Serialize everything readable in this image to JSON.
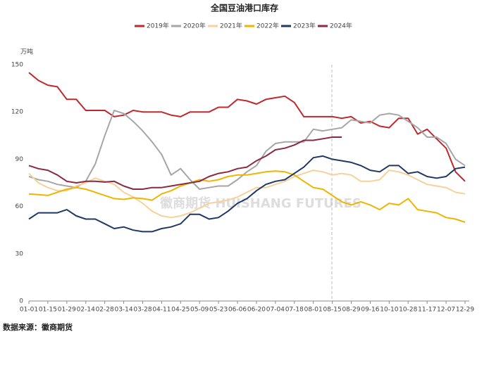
{
  "chart_data": {
    "type": "line",
    "title": "全国豆油港口库存",
    "y_unit": "万吨",
    "source": "数据来源：徽商期货",
    "watermark": "徽商期货 HUISHANG FUTURES",
    "categories": [
      "01-01",
      null,
      "01-15",
      null,
      "01-29",
      null,
      "02-14",
      null,
      "02-28",
      null,
      "03-14",
      null,
      "03-28",
      null,
      "04-11",
      null,
      "04-25",
      null,
      "05-09",
      null,
      "05-23",
      null,
      "06-06",
      null,
      "06-20",
      null,
      "07-04",
      null,
      "07-18",
      null,
      "08-01",
      null,
      "08-15",
      null,
      "08-29",
      null,
      "09-16",
      null,
      "10-10",
      null,
      "10-28",
      null,
      "11-17",
      null,
      "12-07",
      null,
      "12-29"
    ],
    "ylim": [
      0,
      150
    ],
    "yticks": [
      0,
      30,
      60,
      90,
      120,
      150
    ],
    "grid": false,
    "series": [
      {
        "name": "2019年",
        "color": "#c0282d",
        "values": [
          145,
          140,
          137,
          136,
          128,
          128,
          121,
          121,
          121,
          117,
          118,
          121,
          120,
          120,
          120,
          118,
          117,
          120,
          120,
          120,
          123,
          123,
          128,
          127,
          125,
          128,
          129,
          130,
          126,
          117,
          117,
          117,
          117,
          116,
          117,
          113,
          114,
          111,
          110,
          116,
          116,
          106,
          109,
          103,
          97,
          82,
          76
        ]
      },
      {
        "name": "2020年",
        "color": "#a6a6a6",
        "values": [
          79,
          77,
          76,
          74,
          73,
          72,
          76,
          87,
          105,
          121,
          119,
          114,
          108,
          101,
          93,
          80,
          84,
          77,
          71,
          72,
          73,
          73,
          77,
          82,
          86,
          95,
          100,
          101,
          101,
          101,
          109,
          108,
          109,
          110,
          115,
          114,
          113,
          118,
          119,
          118,
          114,
          110,
          104,
          104,
          100,
          90,
          86
        ]
      },
      {
        "name": "2021年",
        "color": "#f8d19a",
        "values": [
          81,
          75,
          72,
          70,
          70,
          73,
          75,
          78,
          76,
          74,
          69,
          66,
          62,
          57,
          54,
          53,
          54,
          56,
          59,
          62,
          63,
          64,
          66,
          69,
          72,
          72,
          74,
          76,
          79,
          81,
          83,
          82,
          80,
          81,
          80,
          76,
          76,
          77,
          83,
          82,
          80,
          77,
          74,
          73,
          72,
          69,
          68
        ]
      },
      {
        "name": "2022年",
        "color": "#f0b400",
        "values": [
          68,
          67.5,
          67,
          69,
          71,
          72,
          71,
          69,
          67,
          65,
          64.5,
          65.5,
          65,
          64,
          68,
          70,
          73,
          75,
          77,
          76,
          77,
          79,
          80,
          80,
          81,
          82,
          82.5,
          82,
          80,
          76,
          72,
          71,
          67,
          63,
          61,
          63,
          61,
          58,
          62,
          61,
          65,
          58,
          57,
          56,
          53,
          52,
          50
        ]
      },
      {
        "name": "2023年",
        "color": "#1f3864",
        "values": [
          52,
          56,
          56,
          56,
          58,
          54,
          52,
          52,
          49,
          46,
          47,
          45,
          44,
          44,
          46,
          47,
          49,
          55,
          55,
          52,
          53,
          57,
          62,
          65,
          70,
          74,
          76,
          77,
          81,
          85,
          91,
          92,
          90,
          89,
          88,
          86,
          83,
          82,
          86,
          86,
          81,
          82,
          79,
          78,
          79,
          84,
          85
        ]
      },
      {
        "name": "2024年",
        "color": "#8b2942",
        "values": [
          86,
          84,
          83,
          80,
          76,
          75,
          76,
          76,
          75.5,
          76,
          73,
          71,
          71,
          72,
          72,
          73,
          74,
          75,
          76,
          79,
          81,
          82,
          84,
          85,
          89,
          92,
          96,
          97,
          99,
          102,
          102,
          103,
          104,
          104,
          null,
          null,
          null,
          null,
          null,
          null,
          null,
          null,
          null,
          null,
          null,
          null,
          null
        ]
      }
    ]
  }
}
